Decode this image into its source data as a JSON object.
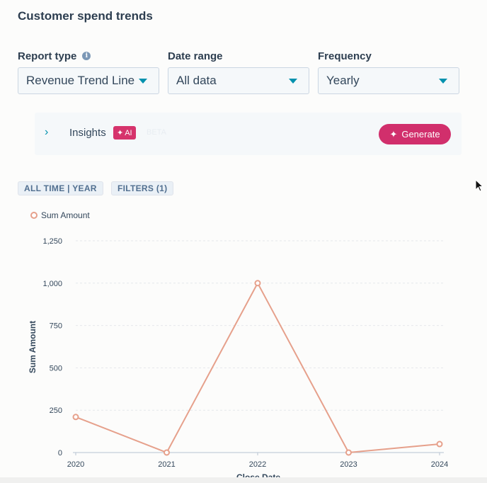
{
  "page": {
    "title": "Customer spend trends"
  },
  "controls": {
    "report_type": {
      "label": "Report type",
      "value": "Revenue Trend Line"
    },
    "date_range": {
      "label": "Date range",
      "value": "All data"
    },
    "frequency": {
      "label": "Frequency",
      "value": "Yearly"
    }
  },
  "insights": {
    "label": "Insights",
    "ai_badge": "AI",
    "beta": "BETA",
    "generate_label": "Generate"
  },
  "chips": {
    "time": "ALL TIME | YEAR",
    "filters": "FILTERS (1)"
  },
  "colors": {
    "series": "#e6a08b",
    "accent": "#d12f6c",
    "link": "#0091ae"
  },
  "chart_data": {
    "type": "line",
    "title": "",
    "xlabel": "Close Date",
    "ylabel": "Sum Amount",
    "categories": [
      "2020",
      "2021",
      "2022",
      "2023",
      "2024"
    ],
    "series": [
      {
        "name": "Sum Amount",
        "values": [
          210,
          0,
          1000,
          0,
          50
        ]
      }
    ],
    "yticks": [
      0,
      250,
      500,
      750,
      1000,
      1250
    ],
    "ytick_labels": [
      "0",
      "250",
      "500",
      "750",
      "1,000",
      "1,250"
    ],
    "ylim": [
      0,
      1250
    ],
    "grid": true,
    "legend": "top-left"
  }
}
